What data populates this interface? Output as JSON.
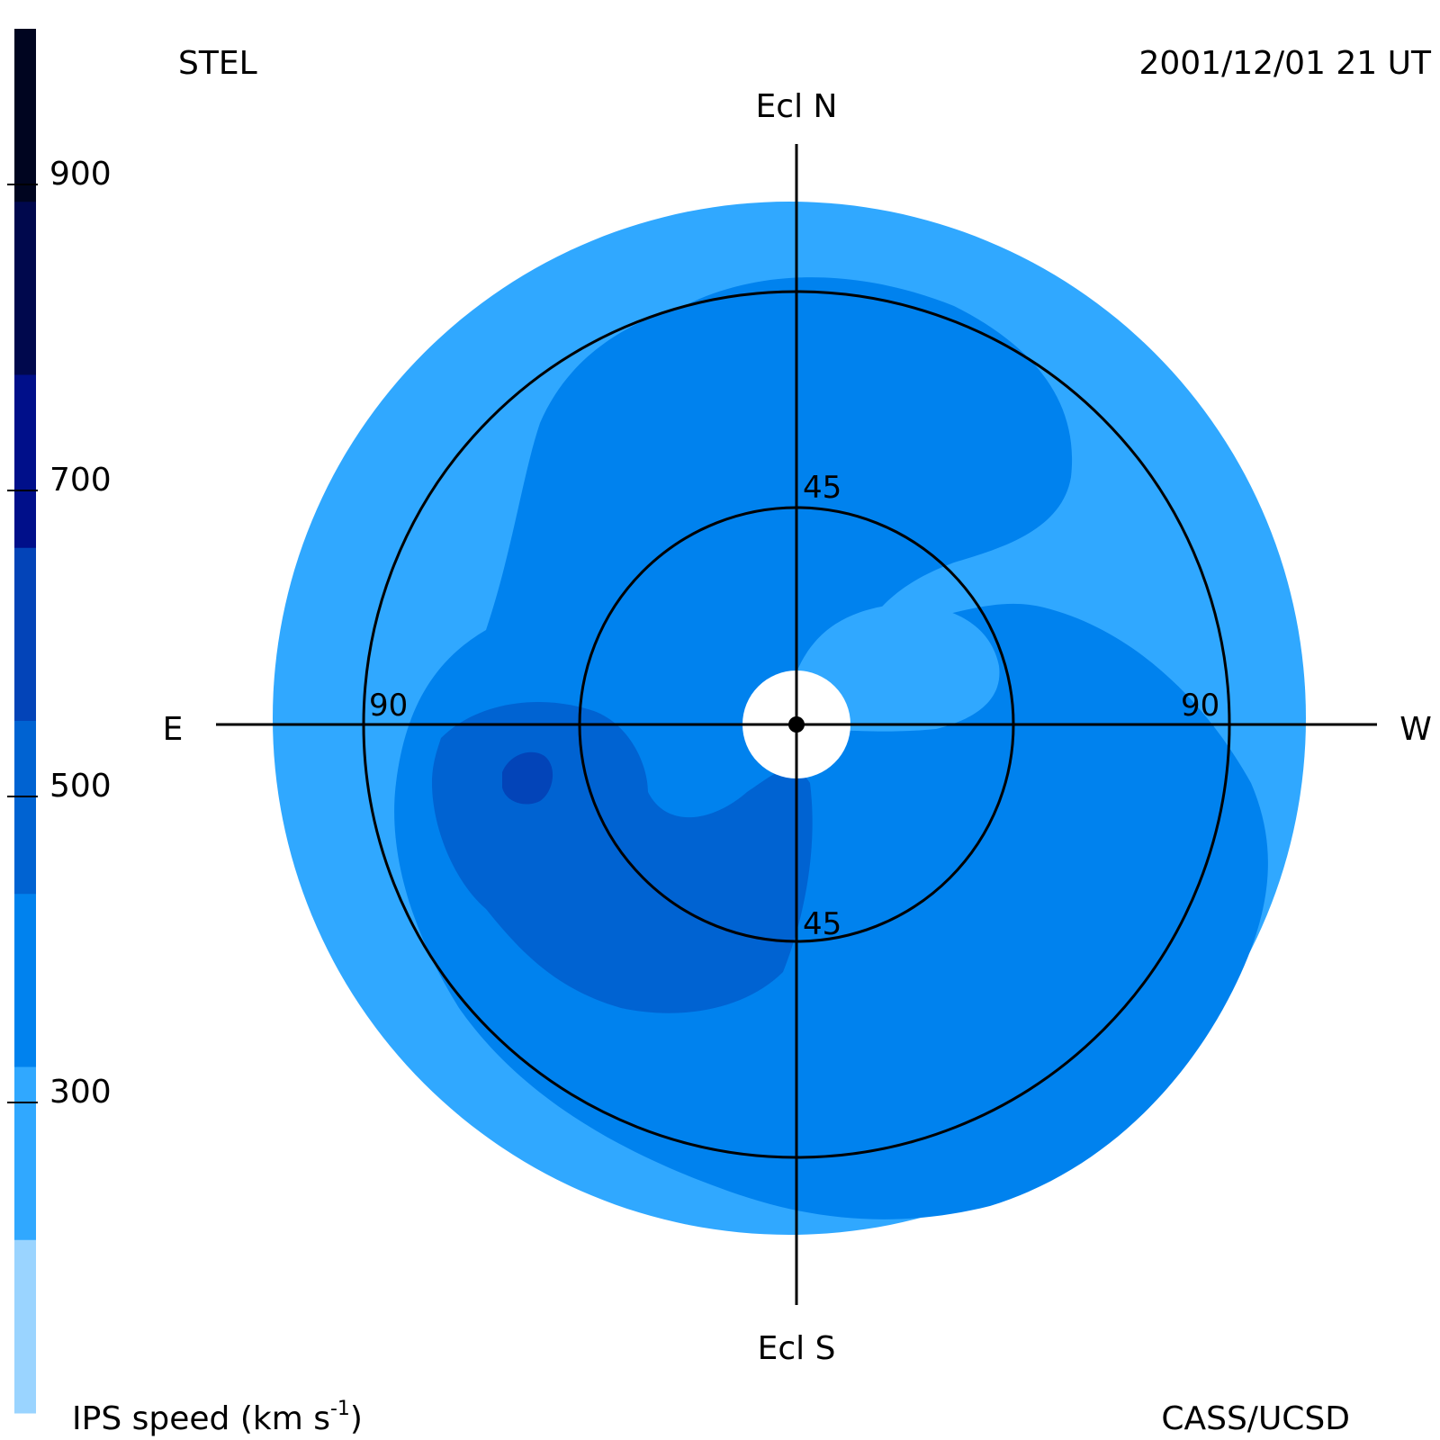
{
  "header": {
    "left_label": "STEL",
    "right_label": "2001/12/01 21 UT"
  },
  "footer": {
    "left_label_main": "IPS speed (km s",
    "left_label_sup": "-1",
    "left_label_end": ")",
    "right_label": "CASS/UCSD"
  },
  "compass": {
    "north": "Ecl N",
    "south": "Ecl S",
    "east": "E",
    "west": "W"
  },
  "rings": {
    "inner_north": "45",
    "inner_south": "45",
    "outer_east": "90",
    "outer_west": "90"
  },
  "colorbar": {
    "ticks": [
      "900",
      "700",
      "500",
      "300"
    ],
    "colors_top_to_bottom": [
      "#000520",
      "#00084d",
      "#000f8a",
      "#0344b8",
      "#0063d2",
      "#0082ee",
      "#30a8ff",
      "#9ad4ff"
    ]
  },
  "speed_colors": {
    "lightest": "#9ad4ff",
    "low": "#30a8ff",
    "medium": "#0082ee",
    "high": "#0063d2",
    "highest": "#0344b8"
  }
}
